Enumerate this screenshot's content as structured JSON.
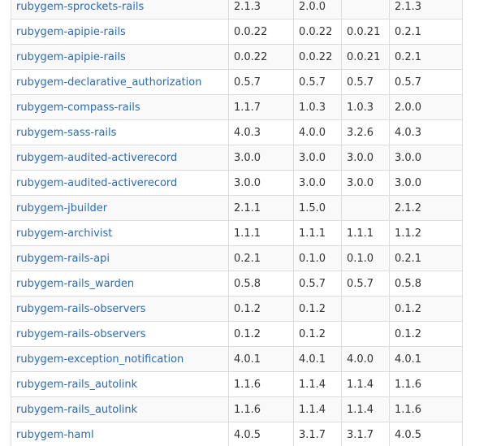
{
  "packages": [
    {
      "name": "rubygem-sprockets-rails",
      "v1": "2.1.3",
      "v2": "2.0.0",
      "v3": "",
      "v4": "2.1.3"
    },
    {
      "name": "rubygem-apipie-rails",
      "v1": "0.0.22",
      "v2": "0.0.22",
      "v3": "0.0.21",
      "v4": "0.2.1"
    },
    {
      "name": "rubygem-apipie-rails",
      "v1": "0.0.22",
      "v2": "0.0.22",
      "v3": "0.0.21",
      "v4": "0.2.1"
    },
    {
      "name": "rubygem-declarative_authorization",
      "v1": "0.5.7",
      "v2": "0.5.7",
      "v3": "0.5.7",
      "v4": "0.5.7"
    },
    {
      "name": "rubygem-compass-rails",
      "v1": "1.1.7",
      "v2": "1.0.3",
      "v3": "1.0.3",
      "v4": "2.0.0"
    },
    {
      "name": "rubygem-sass-rails",
      "v1": "4.0.3",
      "v2": "4.0.0",
      "v3": "3.2.6",
      "v4": "4.0.3"
    },
    {
      "name": "rubygem-audited-activerecord",
      "v1": "3.0.0",
      "v2": "3.0.0",
      "v3": "3.0.0",
      "v4": "3.0.0"
    },
    {
      "name": "rubygem-audited-activerecord",
      "v1": "3.0.0",
      "v2": "3.0.0",
      "v3": "3.0.0",
      "v4": "3.0.0"
    },
    {
      "name": "rubygem-jbuilder",
      "v1": "2.1.1",
      "v2": "1.5.0",
      "v3": "",
      "v4": "2.1.2"
    },
    {
      "name": "rubygem-archivist",
      "v1": "1.1.1",
      "v2": "1.1.1",
      "v3": "1.1.1",
      "v4": "1.1.2"
    },
    {
      "name": "rubygem-rails-api",
      "v1": "0.2.1",
      "v2": "0.1.0",
      "v3": "0.1.0",
      "v4": "0.2.1"
    },
    {
      "name": "rubygem-rails_warden",
      "v1": "0.5.8",
      "v2": "0.5.7",
      "v3": "0.5.7",
      "v4": "0.5.8"
    },
    {
      "name": "rubygem-rails-observers",
      "v1": "0.1.2",
      "v2": "0.1.2",
      "v3": "",
      "v4": "0.1.2"
    },
    {
      "name": "rubygem-rails-observers",
      "v1": "0.1.2",
      "v2": "0.1.2",
      "v3": "",
      "v4": "0.1.2"
    },
    {
      "name": "rubygem-exception_notification",
      "v1": "4.0.1",
      "v2": "4.0.1",
      "v3": "4.0.0",
      "v4": "4.0.1"
    },
    {
      "name": "rubygem-rails_autolink",
      "v1": "1.1.6",
      "v2": "1.1.4",
      "v3": "1.1.4",
      "v4": "1.1.6"
    },
    {
      "name": "rubygem-rails_autolink",
      "v1": "1.1.6",
      "v2": "1.1.4",
      "v3": "1.1.4",
      "v4": "1.1.6"
    },
    {
      "name": "rubygem-haml",
      "v1": "4.0.5",
      "v2": "3.1.7",
      "v3": "3.1.7",
      "v4": "4.0.5"
    }
  ]
}
